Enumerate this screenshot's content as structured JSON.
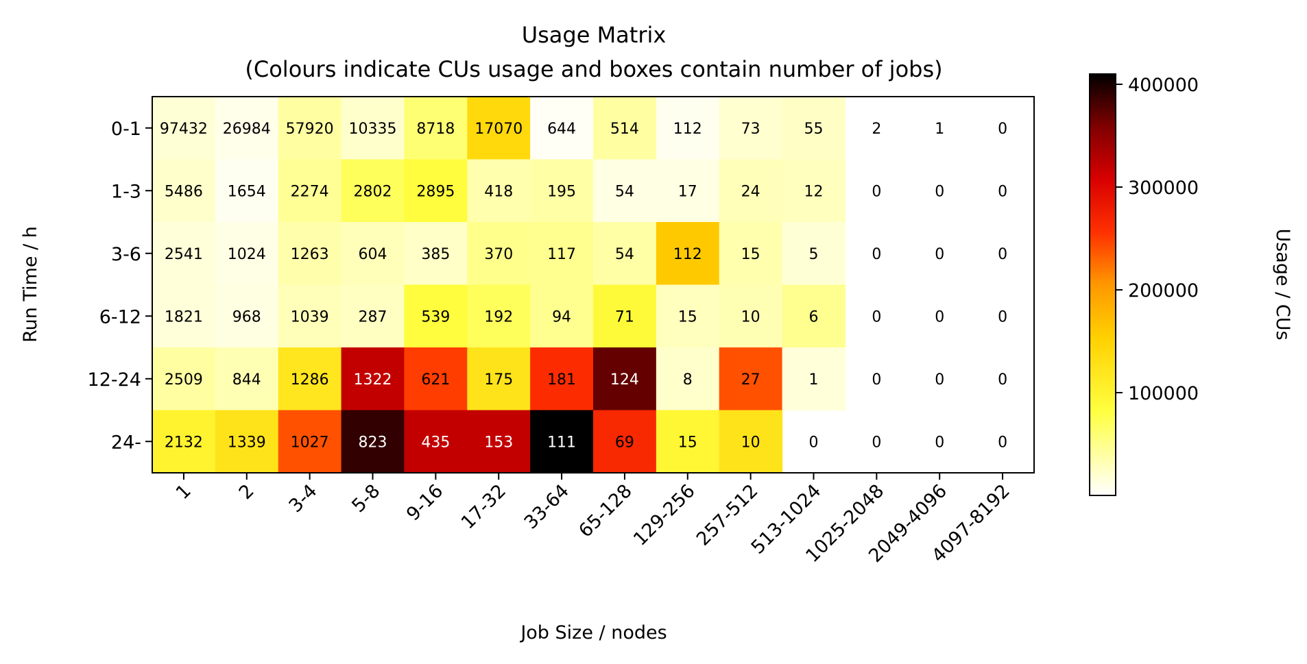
{
  "chart_data": {
    "type": "heatmap",
    "title": "Usage Matrix",
    "subtitle": "(Colours indicate CUs usage and boxes contain number of jobs)",
    "xlabel": "Job Size / nodes",
    "ylabel": "Run Time / h",
    "x_categories": [
      "1",
      "2",
      "3-4",
      "5-8",
      "9-16",
      "17-32",
      "33-64",
      "65-128",
      "129-256",
      "257-512",
      "513-1024",
      "1025-2048",
      "2049-4096",
      "4097-8192"
    ],
    "y_categories": [
      "0-1",
      "1-3",
      "3-6",
      "6-12",
      "12-24",
      "24-"
    ],
    "job_counts": [
      [
        97432,
        26984,
        57920,
        10335,
        8718,
        17070,
        644,
        514,
        112,
        73,
        55,
        2,
        1,
        0
      ],
      [
        5486,
        1654,
        2274,
        2802,
        2895,
        418,
        195,
        54,
        17,
        24,
        12,
        0,
        0,
        0
      ],
      [
        2541,
        1024,
        1263,
        604,
        385,
        370,
        117,
        54,
        112,
        15,
        5,
        0,
        0,
        0
      ],
      [
        1821,
        968,
        1039,
        287,
        539,
        192,
        94,
        71,
        15,
        10,
        6,
        0,
        0,
        0
      ],
      [
        2509,
        844,
        1286,
        1322,
        621,
        175,
        181,
        124,
        8,
        27,
        1,
        0,
        0,
        0
      ],
      [
        2132,
        1339,
        1027,
        823,
        435,
        153,
        111,
        69,
        15,
        10,
        0,
        0,
        0,
        0
      ]
    ],
    "usage_cus": [
      [
        18000,
        9000,
        40000,
        22000,
        60000,
        140000,
        4000,
        40000,
        7000,
        20000,
        25000,
        null,
        null,
        null
      ],
      [
        22000,
        6000,
        45000,
        70000,
        85000,
        35000,
        38000,
        12000,
        12000,
        30000,
        28000,
        null,
        null,
        null
      ],
      [
        16000,
        11000,
        36000,
        30000,
        24000,
        50000,
        48000,
        38000,
        160000,
        35000,
        18000,
        null,
        null,
        null
      ],
      [
        16000,
        13000,
        30000,
        26000,
        85000,
        70000,
        48000,
        90000,
        28000,
        32000,
        48000,
        null,
        null,
        null
      ],
      [
        40000,
        32000,
        120000,
        320000,
        250000,
        125000,
        260000,
        370000,
        22000,
        240000,
        16000,
        null,
        null,
        null
      ],
      [
        100000,
        125000,
        240000,
        390000,
        320000,
        320000,
        410000,
        265000,
        95000,
        125000,
        null,
        null,
        null,
        null
      ]
    ],
    "colorbar": {
      "label": "Usage / CUs",
      "range": [
        0,
        410000
      ],
      "ticks": [
        100000,
        200000,
        300000,
        400000
      ],
      "tick_labels": [
        "100000",
        "200000",
        "300000",
        "400000"
      ],
      "colormap": "hot_r"
    }
  }
}
